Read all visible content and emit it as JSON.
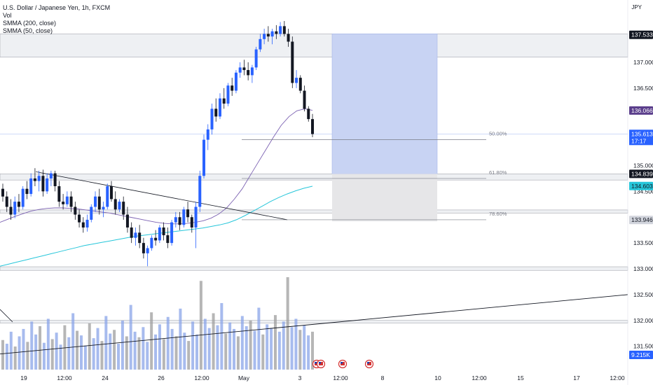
{
  "header": {
    "symbol": "U.S. Dollar / Japanese Yen, 1h, FXCM",
    "indicators": [
      "Vol",
      "SMMA (200, close)",
      "SMMA (50, close)"
    ],
    "currency": "JPY"
  },
  "chart_data": {
    "type": "candlestick",
    "symbol": "USDJPY",
    "timeframe": "1h",
    "x_ticks": [
      "19",
      "12:00",
      "24",
      "26",
      "12:00",
      "May",
      "3",
      "12:00",
      "8",
      "10",
      "12:00",
      "15",
      "17",
      "12:00"
    ],
    "y_ticks": [
      137.0,
      136.5,
      135.5,
      135.0,
      134.5,
      133.5,
      133.0,
      132.5,
      132.0,
      131.5
    ],
    "ylim": [
      131.3,
      138.0
    ],
    "candles": [
      {
        "o": 134.55,
        "h": 134.65,
        "l": 134.3,
        "c": 134.4
      },
      {
        "o": 134.4,
        "h": 134.5,
        "l": 134.1,
        "c": 134.2
      },
      {
        "o": 134.2,
        "h": 134.35,
        "l": 133.95,
        "c": 134.05
      },
      {
        "o": 134.05,
        "h": 134.4,
        "l": 133.98,
        "c": 134.3
      },
      {
        "o": 134.3,
        "h": 134.45,
        "l": 134.1,
        "c": 134.2
      },
      {
        "o": 134.2,
        "h": 134.6,
        "l": 134.15,
        "c": 134.55
      },
      {
        "o": 134.55,
        "h": 134.7,
        "l": 134.35,
        "c": 134.45
      },
      {
        "o": 134.45,
        "h": 134.85,
        "l": 134.4,
        "c": 134.75
      },
      {
        "o": 134.75,
        "h": 134.95,
        "l": 134.6,
        "c": 134.7
      },
      {
        "o": 134.7,
        "h": 134.9,
        "l": 134.5,
        "c": 134.8
      },
      {
        "o": 134.8,
        "h": 134.92,
        "l": 134.4,
        "c": 134.5
      },
      {
        "o": 134.5,
        "h": 134.85,
        "l": 134.45,
        "c": 134.75
      },
      {
        "o": 134.75,
        "h": 134.9,
        "l": 134.6,
        "c": 134.85
      },
      {
        "o": 134.85,
        "h": 134.9,
        "l": 134.5,
        "c": 134.6
      },
      {
        "o": 134.6,
        "h": 134.7,
        "l": 134.2,
        "c": 134.3
      },
      {
        "o": 134.3,
        "h": 134.45,
        "l": 134.15,
        "c": 134.25
      },
      {
        "o": 134.25,
        "h": 134.5,
        "l": 134.2,
        "c": 134.4
      },
      {
        "o": 134.4,
        "h": 134.5,
        "l": 134.1,
        "c": 134.2
      },
      {
        "o": 134.2,
        "h": 134.3,
        "l": 133.95,
        "c": 134.05
      },
      {
        "o": 134.05,
        "h": 134.15,
        "l": 133.8,
        "c": 133.9
      },
      {
        "o": 133.9,
        "h": 134.0,
        "l": 133.7,
        "c": 133.8
      },
      {
        "o": 133.8,
        "h": 134.05,
        "l": 133.72,
        "c": 133.95
      },
      {
        "o": 133.95,
        "h": 134.25,
        "l": 133.9,
        "c": 134.2
      },
      {
        "o": 134.2,
        "h": 134.5,
        "l": 134.1,
        "c": 134.4
      },
      {
        "o": 134.4,
        "h": 134.55,
        "l": 134.05,
        "c": 134.15
      },
      {
        "o": 134.15,
        "h": 134.3,
        "l": 134.0,
        "c": 134.2
      },
      {
        "o": 134.2,
        "h": 134.65,
        "l": 134.15,
        "c": 134.6
      },
      {
        "o": 134.6,
        "h": 134.7,
        "l": 134.3,
        "c": 134.35
      },
      {
        "o": 134.35,
        "h": 134.5,
        "l": 134.05,
        "c": 134.15
      },
      {
        "o": 134.15,
        "h": 134.35,
        "l": 134.1,
        "c": 134.3
      },
      {
        "o": 134.3,
        "h": 134.4,
        "l": 133.95,
        "c": 134.05
      },
      {
        "o": 134.05,
        "h": 134.2,
        "l": 133.7,
        "c": 133.8
      },
      {
        "o": 133.8,
        "h": 133.9,
        "l": 133.5,
        "c": 133.6
      },
      {
        "o": 133.6,
        "h": 133.8,
        "l": 133.45,
        "c": 133.7
      },
      {
        "o": 133.7,
        "h": 133.85,
        "l": 133.4,
        "c": 133.5
      },
      {
        "o": 133.5,
        "h": 133.6,
        "l": 133.2,
        "c": 133.3
      },
      {
        "o": 133.3,
        "h": 133.45,
        "l": 133.05,
        "c": 133.4
      },
      {
        "o": 133.4,
        "h": 133.65,
        "l": 133.35,
        "c": 133.6
      },
      {
        "o": 133.6,
        "h": 133.75,
        "l": 133.45,
        "c": 133.55
      },
      {
        "o": 133.55,
        "h": 133.85,
        "l": 133.5,
        "c": 133.8
      },
      {
        "o": 133.8,
        "h": 133.9,
        "l": 133.55,
        "c": 133.65
      },
      {
        "o": 133.65,
        "h": 133.8,
        "l": 133.4,
        "c": 133.5
      },
      {
        "o": 133.5,
        "h": 133.95,
        "l": 133.45,
        "c": 133.9
      },
      {
        "o": 133.9,
        "h": 134.1,
        "l": 133.8,
        "c": 134.0
      },
      {
        "o": 134.0,
        "h": 134.1,
        "l": 133.75,
        "c": 133.85
      },
      {
        "o": 133.85,
        "h": 134.2,
        "l": 133.8,
        "c": 134.15
      },
      {
        "o": 134.15,
        "h": 134.3,
        "l": 133.9,
        "c": 134.0
      },
      {
        "o": 134.0,
        "h": 134.05,
        "l": 133.7,
        "c": 133.8
      },
      {
        "o": 133.8,
        "h": 134.3,
        "l": 133.4,
        "c": 134.2
      },
      {
        "o": 134.2,
        "h": 134.9,
        "l": 134.1,
        "c": 134.8
      },
      {
        "o": 134.8,
        "h": 135.6,
        "l": 134.75,
        "c": 135.5
      },
      {
        "o": 135.5,
        "h": 135.8,
        "l": 135.3,
        "c": 135.7
      },
      {
        "o": 135.7,
        "h": 136.2,
        "l": 135.6,
        "c": 136.1
      },
      {
        "o": 136.1,
        "h": 136.3,
        "l": 135.85,
        "c": 135.95
      },
      {
        "o": 135.95,
        "h": 136.4,
        "l": 135.9,
        "c": 136.3
      },
      {
        "o": 136.3,
        "h": 136.5,
        "l": 136.1,
        "c": 136.2
      },
      {
        "o": 136.2,
        "h": 136.6,
        "l": 136.15,
        "c": 136.55
      },
      {
        "o": 136.55,
        "h": 136.7,
        "l": 136.35,
        "c": 136.45
      },
      {
        "o": 136.45,
        "h": 136.85,
        "l": 136.4,
        "c": 136.8
      },
      {
        "o": 136.8,
        "h": 137.0,
        "l": 136.7,
        "c": 136.9
      },
      {
        "o": 136.9,
        "h": 137.05,
        "l": 136.75,
        "c": 136.85
      },
      {
        "o": 136.85,
        "h": 137.0,
        "l": 136.65,
        "c": 136.75
      },
      {
        "o": 136.75,
        "h": 136.95,
        "l": 136.6,
        "c": 136.9
      },
      {
        "o": 136.9,
        "h": 137.3,
        "l": 136.85,
        "c": 137.25
      },
      {
        "o": 137.25,
        "h": 137.55,
        "l": 137.2,
        "c": 137.45
      },
      {
        "o": 137.45,
        "h": 137.65,
        "l": 137.35,
        "c": 137.55
      },
      {
        "o": 137.55,
        "h": 137.7,
        "l": 137.4,
        "c": 137.5
      },
      {
        "o": 137.5,
        "h": 137.65,
        "l": 137.35,
        "c": 137.6
      },
      {
        "o": 137.6,
        "h": 137.72,
        "l": 137.45,
        "c": 137.55
      },
      {
        "o": 137.55,
        "h": 137.78,
        "l": 137.5,
        "c": 137.7
      },
      {
        "o": 137.7,
        "h": 137.8,
        "l": 137.5,
        "c": 137.55
      },
      {
        "o": 137.55,
        "h": 137.65,
        "l": 137.3,
        "c": 137.4
      },
      {
        "o": 137.4,
        "h": 137.5,
        "l": 136.5,
        "c": 136.6
      },
      {
        "o": 136.6,
        "h": 136.85,
        "l": 136.5,
        "c": 136.7
      },
      {
        "o": 136.7,
        "h": 136.75,
        "l": 136.4,
        "c": 136.45
      },
      {
        "o": 136.45,
        "h": 136.55,
        "l": 136.05,
        "c": 136.1
      },
      {
        "o": 136.1,
        "h": 136.15,
        "l": 135.85,
        "c": 135.9
      },
      {
        "o": 135.9,
        "h": 136.0,
        "l": 135.55,
        "c": 135.61
      }
    ],
    "smma_50": [
      133.9,
      133.96,
      134.02,
      134.07,
      134.12,
      134.15,
      134.17,
      134.18,
      134.18,
      134.17,
      134.16,
      134.14,
      134.12,
      134.1,
      134.08,
      134.05,
      134.02,
      133.99,
      133.96,
      133.93,
      133.9,
      133.88,
      133.87,
      133.87,
      133.88,
      133.9,
      133.93,
      133.98,
      134.06,
      134.18,
      134.35,
      134.55,
      134.8,
      135.05,
      135.3,
      135.55,
      135.78,
      135.95,
      136.06,
      136.1,
      136.07
    ],
    "smma_200": [
      133.05,
      133.09,
      133.13,
      133.17,
      133.21,
      133.25,
      133.29,
      133.33,
      133.37,
      133.41,
      133.45,
      133.48,
      133.51,
      133.54,
      133.57,
      133.6,
      133.63,
      133.65,
      133.67,
      133.69,
      133.71,
      133.73,
      133.75,
      133.77,
      133.79,
      133.82,
      133.85,
      133.89,
      133.95,
      134.03,
      134.12,
      134.21,
      134.3,
      134.38,
      134.45,
      134.51,
      134.56,
      134.6
    ],
    "volume": [
      32,
      28,
      41,
      25,
      36,
      44,
      30,
      52,
      38,
      47,
      29,
      55,
      33,
      40,
      27,
      48,
      35,
      61,
      42,
      37,
      26,
      50,
      34,
      45,
      31,
      58,
      39,
      43,
      28,
      53,
      36,
      70,
      41,
      35,
      46,
      30,
      62,
      38,
      49,
      33,
      57,
      44,
      36,
      66,
      40,
      31,
      52,
      38,
      96,
      55,
      45,
      61,
      48,
      72,
      39,
      51,
      44,
      36,
      58,
      47,
      53,
      42,
      67,
      38,
      49,
      45,
      59,
      41,
      52,
      100,
      46,
      55,
      43,
      48,
      37,
      41
    ],
    "current_price": "135.613",
    "countdown": "17:17",
    "volume_label": "9.215K",
    "price_tags": [
      {
        "label": "137.533",
        "bg": "#131722",
        "fg": "#ffffff",
        "value": 137.533
      },
      {
        "label": "136.066",
        "bg": "#5b3f8c",
        "fg": "#ffffff",
        "value": 136.066
      },
      {
        "label": "134.839",
        "bg": "#131722",
        "fg": "#ffffff",
        "value": 134.839
      },
      {
        "label": "134.603",
        "bg": "#26c6da",
        "fg": "#131722",
        "value": 134.603
      },
      {
        "label": "133.946",
        "bg": "#d1d4dc",
        "fg": "#131722",
        "value": 133.946
      }
    ],
    "fib_levels": [
      {
        "label": "50.00%",
        "value": 135.5
      },
      {
        "label": "61.80%",
        "value": 134.75
      },
      {
        "label": "78.60%",
        "value": 133.95
      }
    ],
    "zones": [
      {
        "top": 137.55,
        "bottom": 137.1
      },
      {
        "top": 134.84,
        "bottom": 134.72
      },
      {
        "top": 134.14,
        "bottom": 134.08
      },
      {
        "top": 133.04,
        "bottom": 132.97
      },
      {
        "top": 132.0,
        "bottom": 131.95
      }
    ],
    "position": {
      "entry": 134.84,
      "target": 137.55,
      "stop": 133.92
    },
    "trendline_down": [
      {
        "x": 0.055,
        "y": 134.88
      },
      {
        "x": 0.44,
        "y": 133.95
      }
    ],
    "trendline_up": [
      {
        "x": 0.0,
        "y": 131.35
      },
      {
        "x": 1.0,
        "y": 132.5
      }
    ],
    "colors": {
      "bull": "#2962ff",
      "bear": "#131722",
      "smma_50": "#7b61b2",
      "smma_200": "#26c6da",
      "volume": "#8aa4e8",
      "volume_alt": "#9e9e9e",
      "position_profit": "#c8d3f3",
      "position_loss": "#e6e6e8",
      "zone": "#eef0f3",
      "zone_border": "#9598a1",
      "current": "#2962ff"
    },
    "grid": false
  }
}
